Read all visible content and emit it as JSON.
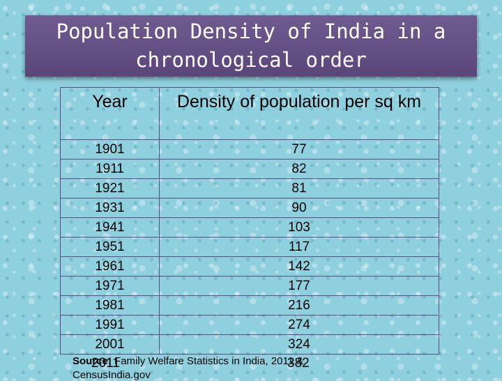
{
  "title": "Population Density of India in a chronological order",
  "table": {
    "headers": [
      "Year",
      "Density of population per sq km"
    ],
    "rows": [
      [
        "1901",
        "77"
      ],
      [
        "1911",
        "82"
      ],
      [
        "1921",
        "81"
      ],
      [
        "1931",
        "90"
      ],
      [
        "1941",
        "103"
      ],
      [
        "1951",
        "117"
      ],
      [
        "1961",
        "142"
      ],
      [
        "1971",
        "177"
      ],
      [
        "1981",
        "216"
      ],
      [
        "1991",
        "274"
      ],
      [
        "2001",
        "324"
      ],
      [
        "2011",
        "382"
      ]
    ]
  },
  "source": {
    "label": "Source:",
    "text": " Family Welfare Statistics in India, 2011 &",
    "line2": "CensusIndia.gov"
  }
}
